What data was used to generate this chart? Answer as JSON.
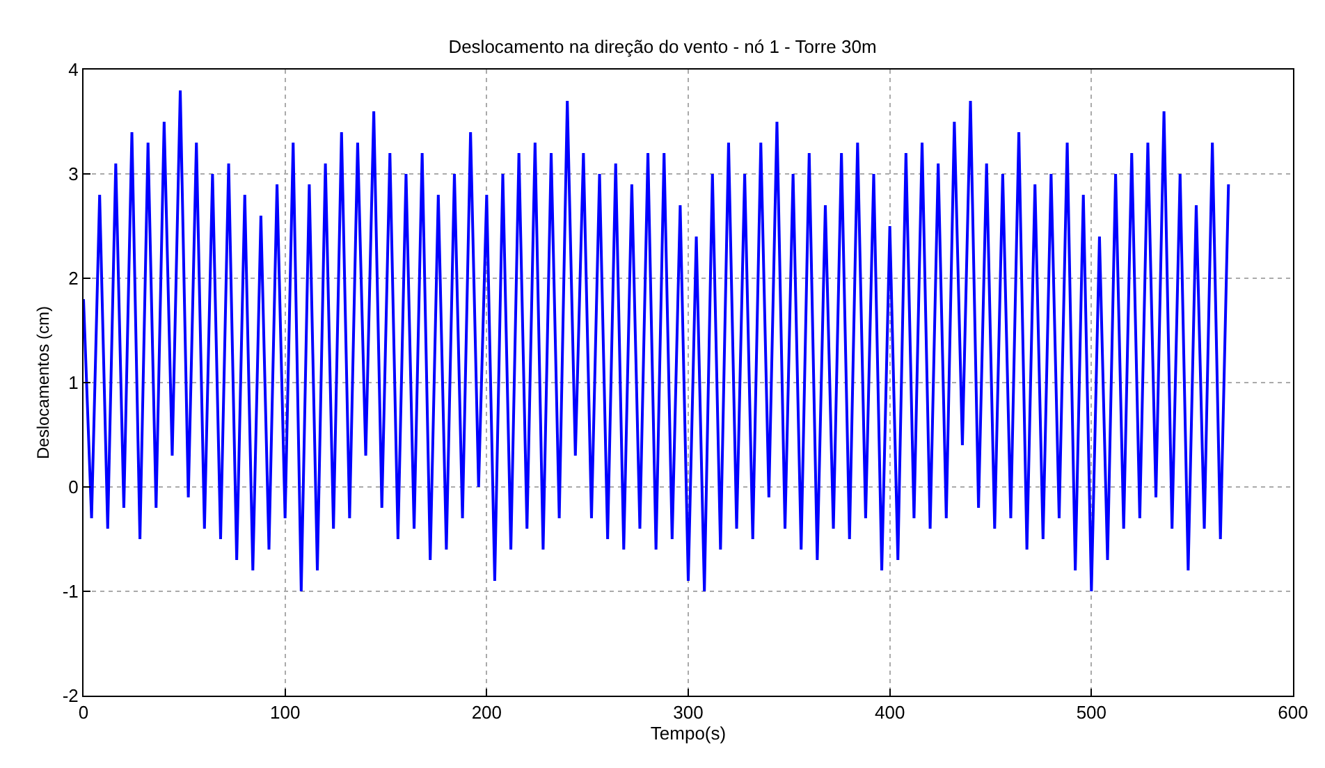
{
  "chart_data": {
    "type": "line",
    "title": "Deslocamento na direção do vento - nó 1 - Torre 30m",
    "xlabel": "Tempo(s)",
    "ylabel": "Deslocamentos (cm)",
    "x": [
      0,
      4,
      8,
      12,
      16,
      20,
      24,
      28,
      32,
      36,
      40,
      44,
      48,
      52,
      56,
      60,
      64,
      68,
      72,
      76,
      80,
      84,
      88,
      92,
      96,
      100,
      104,
      108,
      112,
      116,
      120,
      124,
      128,
      132,
      136,
      140,
      144,
      148,
      152,
      156,
      160,
      164,
      168,
      172,
      176,
      180,
      184,
      188,
      192,
      196,
      200,
      204,
      208,
      212,
      216,
      220,
      224,
      228,
      232,
      236,
      240,
      244,
      248,
      252,
      256,
      260,
      264,
      268,
      272,
      276,
      280,
      284,
      288,
      292,
      296,
      300,
      304,
      308,
      312,
      316,
      320,
      324,
      328,
      332,
      336,
      340,
      344,
      348,
      352,
      356,
      360,
      364,
      368,
      372,
      376,
      380,
      384,
      388,
      392,
      396,
      400,
      404,
      408,
      412,
      416,
      420,
      424,
      428,
      432,
      436,
      440,
      444,
      448,
      452,
      456,
      460,
      464,
      468,
      472,
      476,
      480,
      484,
      488,
      492,
      496,
      500,
      504,
      508,
      512,
      516,
      520,
      524,
      528,
      532,
      536,
      540,
      544,
      548,
      552,
      556,
      560,
      564,
      568
    ],
    "series": [
      {
        "color": "#0000ff",
        "values": [
          1.8,
          -0.3,
          2.8,
          -0.4,
          3.1,
          -0.2,
          3.4,
          -0.5,
          3.3,
          -0.2,
          3.5,
          0.3,
          3.8,
          -0.1,
          3.3,
          -0.4,
          3.0,
          -0.5,
          3.1,
          -0.7,
          2.8,
          -0.8,
          2.6,
          -0.6,
          2.9,
          -0.3,
          3.3,
          -1.0,
          2.9,
          -0.8,
          3.1,
          -0.4,
          3.4,
          -0.3,
          3.3,
          0.3,
          3.6,
          -0.2,
          3.2,
          -0.5,
          3.0,
          -0.4,
          3.2,
          -0.7,
          2.8,
          -0.6,
          3.0,
          -0.3,
          3.4,
          0.0,
          2.8,
          -0.9,
          3.0,
          -0.6,
          3.2,
          -0.4,
          3.3,
          -0.6,
          3.2,
          -0.3,
          3.7,
          0.3,
          3.2,
          -0.3,
          3.0,
          -0.5,
          3.1,
          -0.6,
          2.9,
          -0.4,
          3.2,
          -0.6,
          3.2,
          -0.5,
          2.7,
          -0.9,
          2.4,
          -1.0,
          3.0,
          -0.6,
          3.3,
          -0.4,
          3.0,
          -0.5,
          3.3,
          -0.1,
          3.5,
          -0.4,
          3.0,
          -0.6,
          3.2,
          -0.7,
          2.7,
          -0.4,
          3.2,
          -0.5,
          3.3,
          -0.3,
          3.0,
          -0.8,
          2.5,
          -0.7,
          3.2,
          -0.3,
          3.3,
          -0.4,
          3.1,
          -0.3,
          3.5,
          0.4,
          3.7,
          -0.2,
          3.1,
          -0.4,
          3.0,
          -0.3,
          3.4,
          -0.6,
          2.9,
          -0.5,
          3.0,
          -0.3,
          3.3,
          -0.8,
          2.8,
          -1.0,
          2.4,
          -0.7,
          3.0,
          -0.4,
          3.2,
          -0.3,
          3.3,
          -0.1,
          3.6,
          -0.4,
          3.0,
          -0.8,
          2.7,
          -0.4,
          3.3,
          -0.5,
          2.9
        ]
      }
    ],
    "xlim": [
      0,
      600
    ],
    "xticks": [
      0,
      100,
      200,
      300,
      400,
      500,
      600
    ],
    "ylim": [
      -2,
      4
    ],
    "yticks": [
      -2,
      -1,
      0,
      1,
      2,
      3,
      4
    ],
    "grid": true,
    "marker": "none",
    "line_style": "solid"
  }
}
